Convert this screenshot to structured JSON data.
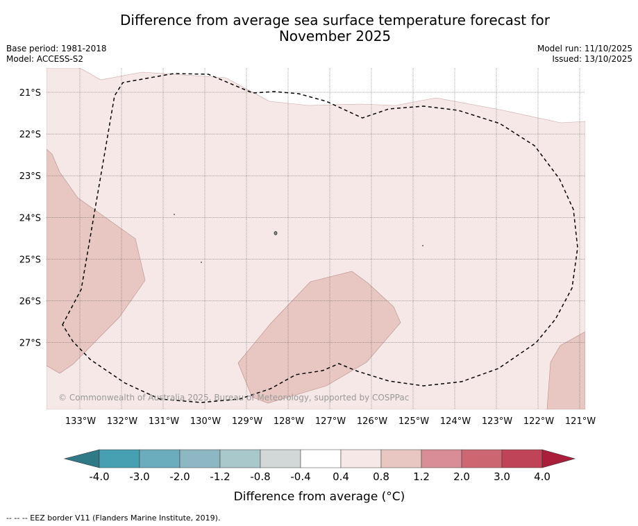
{
  "title_line1": "Difference from average sea surface temperature forecast for",
  "title_line2": "November 2025",
  "base_period": "Base period: 1981-2018",
  "model": "Model: ACCESS-S2",
  "model_run": "Model run: 11/10/2025",
  "issued": "Issued: 13/10/2025",
  "copyright": "© Commonwealth of Australia 2025, Bureau of Meteorology, supported by COSPPac",
  "footer_note": "--  --  -- EEZ border V11 (Flanders Marine Institute, 2019).",
  "map": {
    "lat_labels": [
      "21°S",
      "22°S",
      "23°S",
      "24°S",
      "25°S",
      "26°S",
      "27°S"
    ],
    "lon_labels": [
      "133°W",
      "132°W",
      "131°W",
      "130°W",
      "129°W",
      "128°W",
      "127°W",
      "126°W",
      "125°W",
      "124°W",
      "123°W",
      "122°W",
      "121°W"
    ],
    "colors": {
      "band_04_08": "#f5e8e7",
      "band_08_12": "#e8c7c3"
    }
  },
  "colorbar": {
    "label": "Difference from average (°C)",
    "ticks": [
      "-4.0",
      "-3.0",
      "-2.0",
      "-1.2",
      "-0.8",
      "-0.4",
      "0.4",
      "0.8",
      "1.2",
      "2.0",
      "3.0",
      "4.0"
    ],
    "colors": [
      "#2f7a86",
      "#47a0b2",
      "#6badbc",
      "#8db8c3",
      "#a9c8cc",
      "#d2d7d7",
      "#ffffff",
      "#f5e8e7",
      "#e8c7c3",
      "#d98d96",
      "#cc6772",
      "#c04457",
      "#a91e3a"
    ]
  }
}
